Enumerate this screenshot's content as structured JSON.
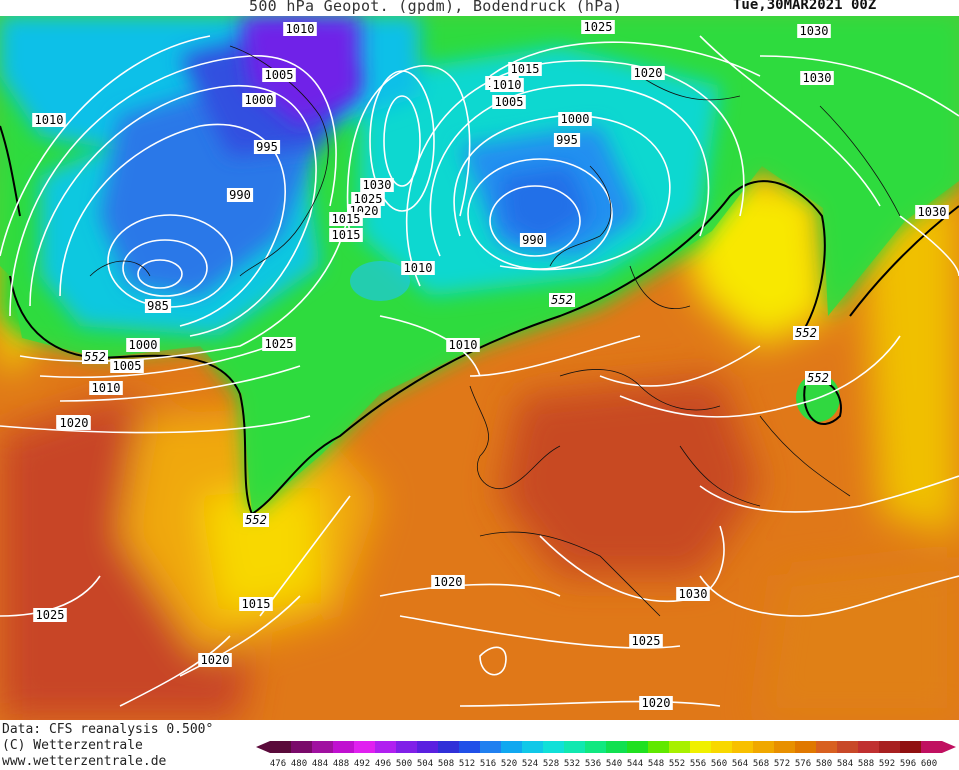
{
  "header": {
    "title": "500 hPa Geopot. (gpdm), Bodendruck (hPa)",
    "datetime": "Tue,30MAR2021 00Z"
  },
  "footer": {
    "data_source": "Data: CFS reanalysis 0.500°",
    "copyright": "(C) Wetterzentrale",
    "website": "www.wetterzentrale.de"
  },
  "colorbar": {
    "ticks": [
      "476",
      "480",
      "484",
      "488",
      "492",
      "496",
      "500",
      "504",
      "508",
      "512",
      "516",
      "520",
      "524",
      "528",
      "532",
      "536",
      "540",
      "544",
      "548",
      "552",
      "556",
      "560",
      "564",
      "568",
      "572",
      "576",
      "580",
      "584",
      "588",
      "592",
      "596",
      "600"
    ],
    "colors": [
      "#5a0a3a",
      "#7a0a6a",
      "#a010a0",
      "#c010d0",
      "#e020f0",
      "#b020f0",
      "#8020e8",
      "#5a20e0",
      "#3030d8",
      "#2050e8",
      "#2080f0",
      "#10a8f0",
      "#10c8e8",
      "#10e0d8",
      "#10e8b0",
      "#10e880",
      "#10e050",
      "#20e020",
      "#60e800",
      "#a8f000",
      "#f0f000",
      "#f8d800",
      "#f8c000",
      "#f0a800",
      "#e89000",
      "#e07800",
      "#d86020",
      "#c84828",
      "#c03030",
      "#a82020",
      "#901010",
      "#c01060"
    ]
  },
  "isobar_labels": [
    {
      "text": "1010"
    },
    {
      "text": "1005"
    },
    {
      "text": "1000"
    },
    {
      "text": "995"
    },
    {
      "text": "990"
    },
    {
      "text": "985"
    },
    {
      "text": "1000"
    },
    {
      "text": "1005"
    },
    {
      "text": "1010"
    },
    {
      "text": "1020"
    },
    {
      "text": "1010"
    },
    {
      "text": "1015"
    },
    {
      "text": "1025"
    },
    {
      "text": "1030"
    },
    {
      "text": "1025"
    },
    {
      "text": "1020"
    },
    {
      "text": "1015"
    },
    {
      "text": "1015"
    },
    {
      "text": "1010"
    },
    {
      "text": "1010"
    },
    {
      "text": "1005"
    },
    {
      "text": "1000"
    },
    {
      "text": "995"
    },
    {
      "text": "990"
    },
    {
      "text": "1010"
    },
    {
      "text": "1025"
    },
    {
      "text": "1020"
    },
    {
      "text": "1025"
    },
    {
      "text": "1030"
    },
    {
      "text": "1030"
    },
    {
      "text": "1030"
    },
    {
      "text": "1020"
    },
    {
      "text": "1030"
    },
    {
      "text": "1025"
    },
    {
      "text": "1020"
    },
    {
      "text": "1020"
    },
    {
      "text": "1015"
    },
    {
      "text": "1020"
    },
    {
      "text": "1025"
    }
  ],
  "geopot_labels": [
    {
      "text": "552"
    },
    {
      "text": "552"
    },
    {
      "text": "552"
    },
    {
      "text": "552"
    },
    {
      "text": "552"
    }
  ]
}
